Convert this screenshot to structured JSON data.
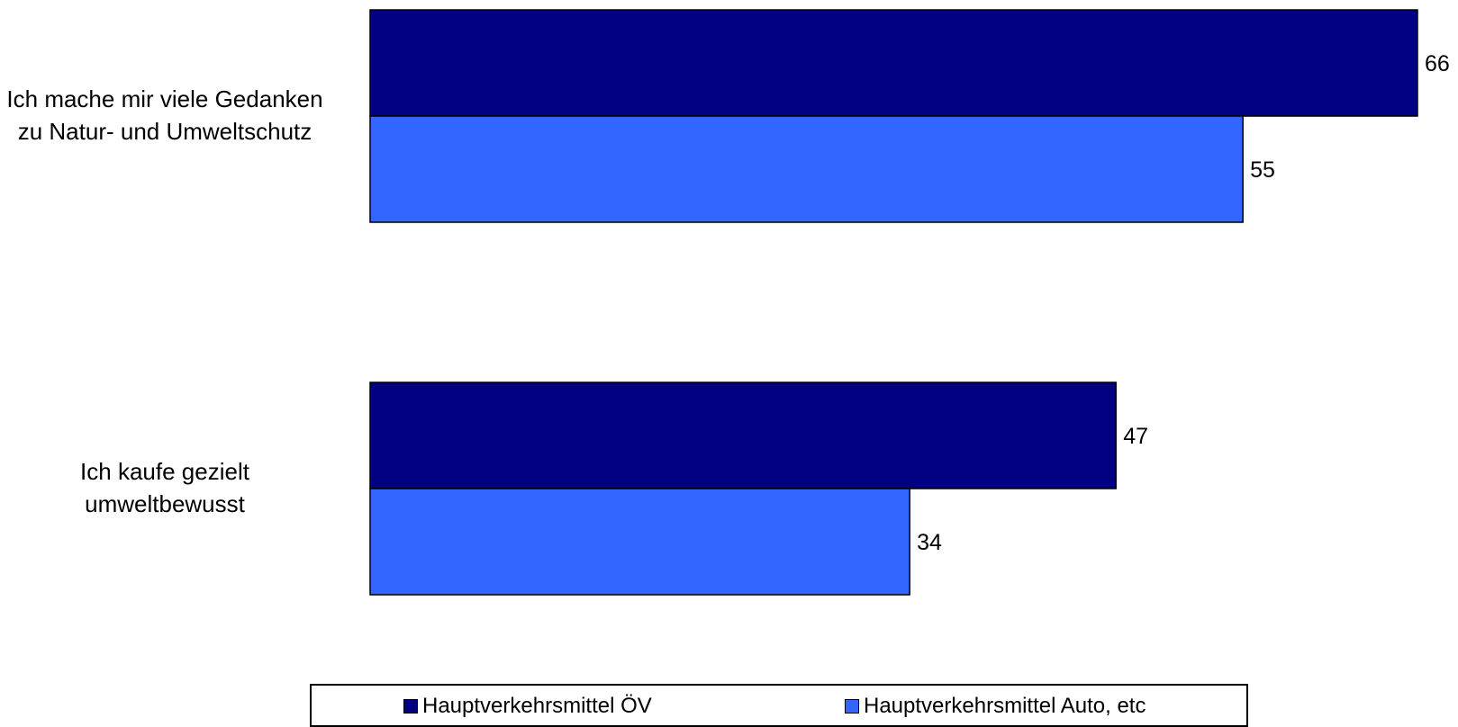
{
  "chart_data": {
    "type": "bar",
    "orientation": "horizontal",
    "categories": [
      [
        "Ich mache mir viele Gedanken",
        "zu Natur- und Umweltschutz"
      ],
      [
        "Ich kaufe gezielt",
        "umweltbewusst"
      ]
    ],
    "series": [
      {
        "name": "Hauptverkehrsmittel ÖV",
        "values": [
          66,
          47
        ],
        "color": "#000080"
      },
      {
        "name": "Hauptverkehrsmittel Auto, etc",
        "values": [
          55,
          34
        ],
        "color": "#3366FF"
      }
    ],
    "xlim": [
      0,
      66
    ],
    "grid": false,
    "data_labels": true,
    "legend_position": "bottom"
  }
}
